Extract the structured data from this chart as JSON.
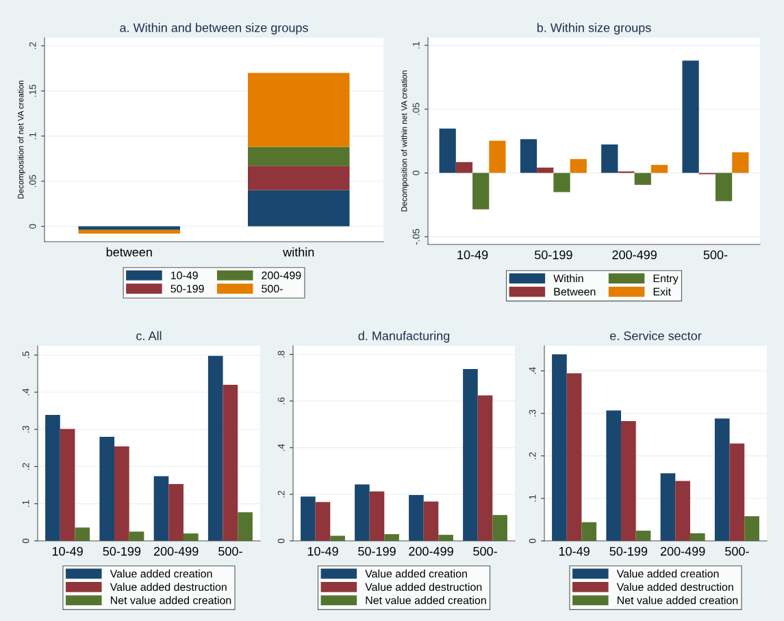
{
  "chart_data": [
    {
      "type": "bar",
      "title": "a. Within and between size groups",
      "ylabel": "Decomposition of net VA creation",
      "categories": [
        "between",
        "within"
      ],
      "stacked": true,
      "series": [
        {
          "name": "10-49",
          "color": "#1a476f",
          "values": [
            -0.004,
            0.04
          ]
        },
        {
          "name": "50-199",
          "color": "#90353b",
          "values": [
            0,
            0.027
          ]
        },
        {
          "name": "200-499",
          "color": "#55752f",
          "values": [
            0,
            0.021
          ]
        },
        {
          "name": "500-",
          "color": "#e37e00",
          "values": [
            -0.004,
            0.082
          ]
        }
      ],
      "ylim": [
        -0.017,
        0.209
      ],
      "yticks": [
        {
          "value": 0,
          "label": "0"
        },
        {
          "value": 0.05,
          "label": ".05"
        },
        {
          "value": 0.1,
          "label": ".1"
        },
        {
          "value": 0.15,
          "label": ".15"
        },
        {
          "value": 0.2,
          "label": ".2"
        }
      ],
      "grid": "y",
      "legend": "bottom"
    },
    {
      "type": "bar",
      "title": "b. Within size groups",
      "ylabel": "Decomposition of within net VA creation",
      "categories": [
        "10-49",
        "50-199",
        "200-499",
        "500-"
      ],
      "series": [
        {
          "name": "Within",
          "color": "#1a476f",
          "values": [
            0.0348,
            0.0265,
            0.0223,
            0.088
          ]
        },
        {
          "name": "Between",
          "color": "#90353b",
          "values": [
            0.0085,
            0.0042,
            0.0012,
            -0.001
          ]
        },
        {
          "name": "Entry",
          "color": "#55752f",
          "values": [
            -0.0285,
            -0.015,
            -0.0093,
            -0.0221
          ]
        },
        {
          "name": "Exit",
          "color": "#e37e00",
          "values": [
            0.0253,
            0.0109,
            0.0063,
            0.0162
          ]
        }
      ],
      "ylim": [
        -0.056,
        0.106
      ],
      "yticks": [
        {
          "value": -0.05,
          "label": "-.05"
        },
        {
          "value": 0,
          "label": "0"
        },
        {
          "value": 0.05,
          "label": ".05"
        },
        {
          "value": 0.1,
          "label": ".1"
        }
      ],
      "grid": "y",
      "legend": "bottom"
    },
    {
      "type": "bar",
      "title": "c. All",
      "categories": [
        "10-49",
        "50-199",
        "200-499",
        "500-"
      ],
      "series": [
        {
          "name": "Value added creation",
          "color": "#1a476f",
          "values": [
            0.339,
            0.28,
            0.174,
            0.498
          ]
        },
        {
          "name": "Value added destruction",
          "color": "#90353b",
          "values": [
            0.301,
            0.254,
            0.153,
            0.42
          ]
        },
        {
          "name": "Net value added creation",
          "color": "#55752f",
          "values": [
            0.036,
            0.025,
            0.02,
            0.077
          ]
        }
      ],
      "ylim": [
        0,
        0.525
      ],
      "yticks": [
        {
          "value": 0,
          "label": "0"
        },
        {
          "value": 0.1,
          "label": ".1"
        },
        {
          "value": 0.2,
          "label": ".2"
        },
        {
          "value": 0.3,
          "label": ".3"
        },
        {
          "value": 0.4,
          "label": ".4"
        },
        {
          "value": 0.5,
          "label": ".5"
        }
      ],
      "grid": "y",
      "legend": "bottom"
    },
    {
      "type": "bar",
      "title": "d. Manufacturing",
      "categories": [
        "10-49",
        "50-199",
        "200-499",
        "500-"
      ],
      "series": [
        {
          "name": "Value added creation",
          "color": "#1a476f",
          "values": [
            0.19,
            0.242,
            0.197,
            0.737
          ]
        },
        {
          "name": "Value added destruction",
          "color": "#90353b",
          "values": [
            0.167,
            0.212,
            0.169,
            0.624
          ]
        },
        {
          "name": "Net value added creation",
          "color": "#55752f",
          "values": [
            0.022,
            0.029,
            0.026,
            0.111
          ]
        }
      ],
      "ylim": [
        0,
        0.837
      ],
      "yticks": [
        {
          "value": 0,
          "label": "0"
        },
        {
          "value": 0.2,
          "label": ".2"
        },
        {
          "value": 0.4,
          "label": ".4"
        },
        {
          "value": 0.6,
          "label": ".6"
        },
        {
          "value": 0.8,
          "label": ".8"
        }
      ],
      "grid": "y",
      "legend": "bottom"
    },
    {
      "type": "bar",
      "title": "e. Service sector",
      "categories": [
        "10-49",
        "50-199",
        "200-499",
        "500-"
      ],
      "series": [
        {
          "name": "Value added creation",
          "color": "#1a476f",
          "values": [
            0.439,
            0.307,
            0.159,
            0.288
          ]
        },
        {
          "name": "Value added destruction",
          "color": "#90353b",
          "values": [
            0.394,
            0.282,
            0.141,
            0.229
          ]
        },
        {
          "name": "Net value added creation",
          "color": "#55752f",
          "values": [
            0.044,
            0.024,
            0.018,
            0.058
          ]
        }
      ],
      "ylim": [
        0,
        0.459
      ],
      "yticks": [
        {
          "value": 0,
          "label": "0"
        },
        {
          "value": 0.1,
          "label": ".1"
        },
        {
          "value": 0.2,
          "label": ".2"
        },
        {
          "value": 0.3,
          "label": ".3"
        },
        {
          "value": 0.4,
          "label": ".4"
        }
      ],
      "grid": "y",
      "legend": "bottom"
    }
  ]
}
